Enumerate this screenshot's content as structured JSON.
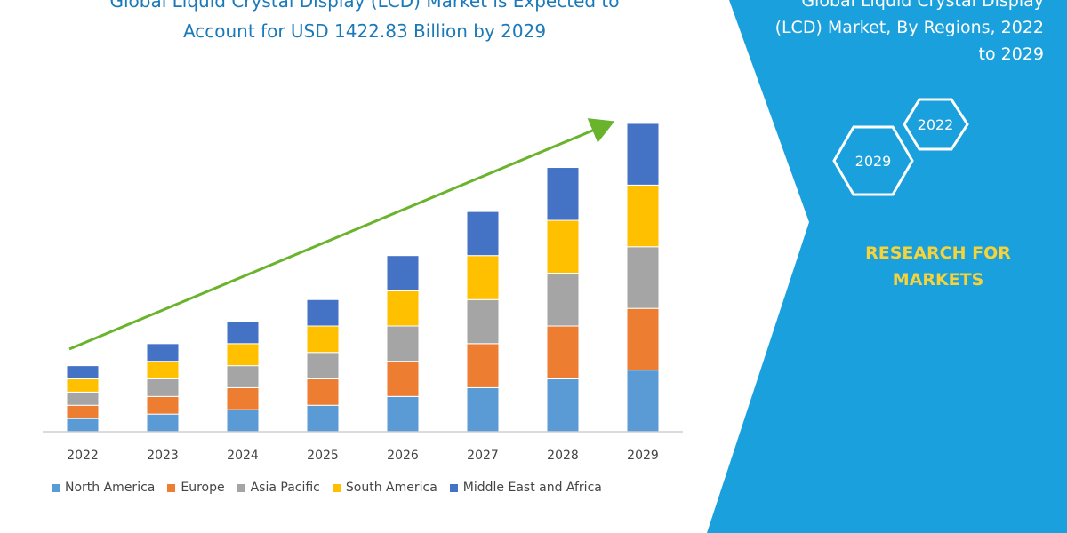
{
  "colors": {
    "panel": "#1aa0dd",
    "title": "#1a79b8",
    "brand": "#f6d23b",
    "trend": "#6ab42d",
    "axis": "#cfcfcf"
  },
  "header": {
    "title_line1": "Global Liquid Crystal Display (LCD) Market is Expected to",
    "title_line2": "Account for USD 1422.83 Billion by 2029"
  },
  "side_panel": {
    "title_line1": "Global Liquid Crystal Display",
    "title_line2": "(LCD) Market, By Regions, 2022",
    "title_line3": "to 2029",
    "hex_labels": [
      "2022",
      "2029"
    ],
    "brand_line1": "RESEARCH FOR",
    "brand_line2": "MARKETS"
  },
  "chart_data": {
    "type": "bar",
    "stacked": true,
    "categories": [
      "2022",
      "2023",
      "2024",
      "2025",
      "2026",
      "2027",
      "2028",
      "2029"
    ],
    "series": [
      {
        "name": "North America",
        "color": "#5b9bd5",
        "values": [
          15,
          20,
          25,
          30,
          40,
          50,
          60,
          70
        ]
      },
      {
        "name": "Europe",
        "color": "#ed7d31",
        "values": [
          15,
          20,
          25,
          30,
          40,
          50,
          60,
          70
        ]
      },
      {
        "name": "Asia Pacific",
        "color": "#a5a5a5",
        "values": [
          15,
          20,
          25,
          30,
          40,
          50,
          60,
          70
        ]
      },
      {
        "name": "South America",
        "color": "#ffc000",
        "values": [
          15,
          20,
          25,
          30,
          40,
          50,
          60,
          70
        ]
      },
      {
        "name": "Middle East and Africa",
        "color": "#4472c4",
        "values": [
          15,
          20,
          25,
          30,
          40,
          50,
          60,
          70
        ]
      }
    ],
    "ylim": [
      0,
      355
    ],
    "grid": false,
    "legend_position": "bottom",
    "trend_arrow": true
  }
}
